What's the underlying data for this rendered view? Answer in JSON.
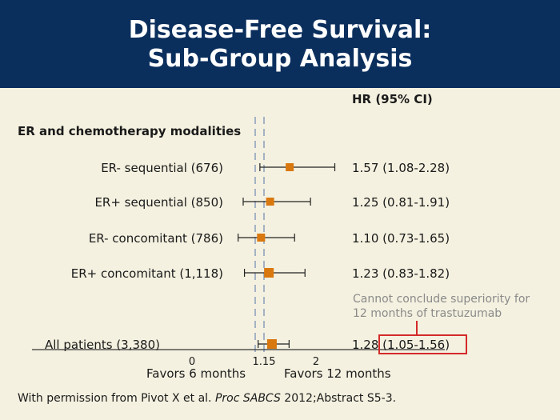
{
  "title": {
    "line1": "Disease-Free Survival:",
    "line2": "Sub-Group Analysis"
  },
  "hr_header": "HR (95% CI)",
  "section_label": "ER and chemotherapy modalities",
  "annotation": {
    "line1": "Cannot conclude superiority for",
    "line2": "12 months of trastuzumab"
  },
  "axis": {
    "left_label": "Favors 6 months",
    "right_label": "Favors 12 months"
  },
  "citation": {
    "prefix": "With permission from Pivot X et al. ",
    "journal": "Proc SABCS",
    "suffix": " 2012;Abstract S5-3."
  },
  "colors": {
    "header_bg": "#0b2f5d",
    "background": "#f4f1e0",
    "marker": "#d9780f",
    "ref_line": "#8fa3bd",
    "highlight_box": "#d42a2a"
  },
  "chart_data": {
    "type": "forest",
    "x_ticks": [
      0,
      1.15,
      2
    ],
    "x_tick_labels": [
      "0",
      "1.15",
      "2"
    ],
    "reference_lines": [
      1,
      1.15
    ],
    "rows": [
      {
        "label": "ER- sequential (676)",
        "hr": 1.57,
        "lo": 1.08,
        "hi": 2.28,
        "text": "1.57 (1.08-2.28)"
      },
      {
        "label": "ER+ sequential (850)",
        "hr": 1.25,
        "lo": 0.81,
        "hi": 1.91,
        "text": "1.25 (0.81-1.91)"
      },
      {
        "label": "ER- concomitant (786)",
        "hr": 1.1,
        "lo": 0.73,
        "hi": 1.65,
        "text": "1.10 (0.73-1.65)"
      },
      {
        "label": "ER+ concomitant (1,118)",
        "hr": 1.23,
        "lo": 0.83,
        "hi": 1.82,
        "text": "1.23 (0.83-1.82)"
      },
      {
        "label": "All patients (3,380)",
        "hr": 1.28,
        "lo": 1.05,
        "hi": 1.56,
        "text": "1.28 (1.05-1.56)",
        "highlight": "(1.05-1.56)"
      }
    ]
  }
}
